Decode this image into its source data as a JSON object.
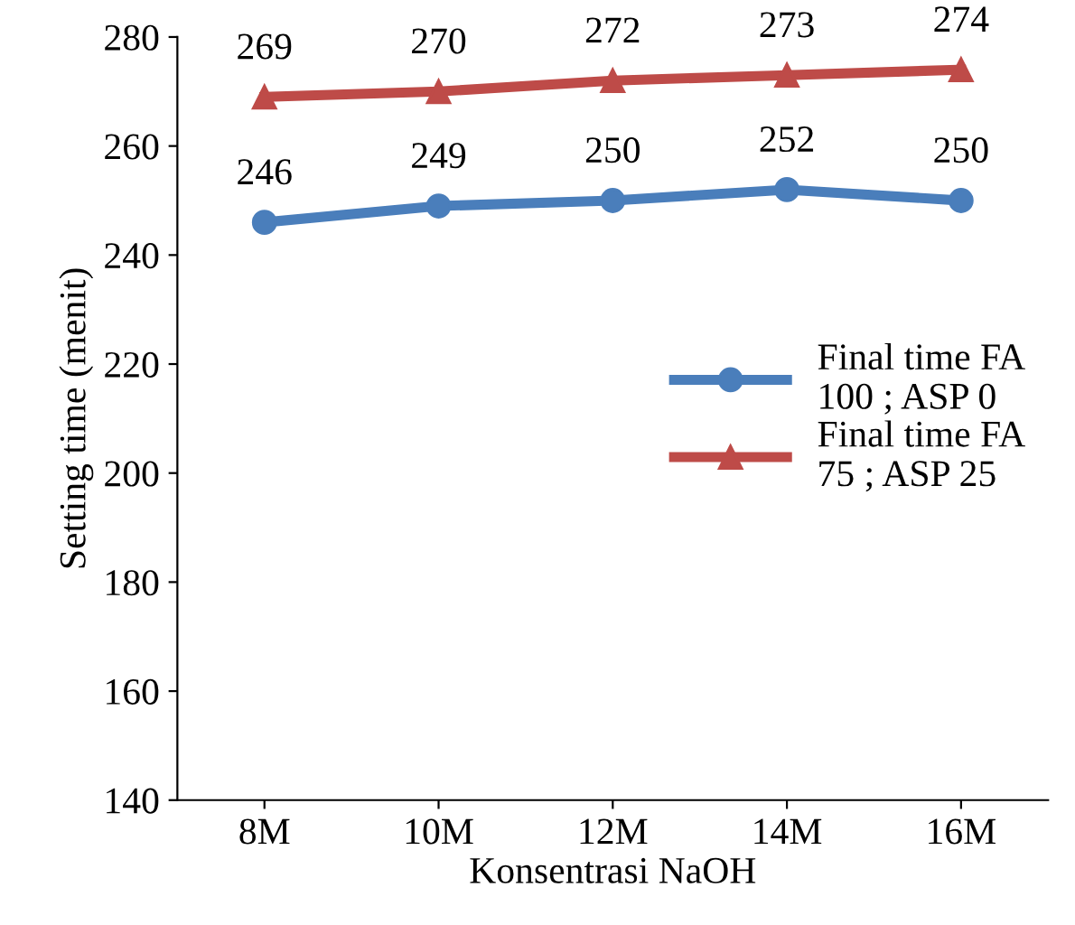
{
  "chart_data": {
    "type": "line",
    "xlabel": "Konsentrasi NaOH",
    "ylabel": "Setting time (menit)",
    "categories": [
      "8M",
      "10M",
      "12M",
      "14M",
      "16M"
    ],
    "series": [
      {
        "name": "Final time FA\n100 ; ASP 0",
        "color": "#4a7ebb",
        "marker": "circle",
        "values": [
          246,
          249,
          250,
          252,
          250
        ]
      },
      {
        "name": "Final time FA\n75 ; ASP 25",
        "color": "#be4b48",
        "marker": "triangle",
        "values": [
          269,
          270,
          272,
          273,
          274
        ]
      }
    ],
    "ylim": [
      140,
      280
    ],
    "yticks": [
      140,
      160,
      180,
      200,
      220,
      240,
      260,
      280
    ],
    "data_labels": true,
    "grid": false,
    "legend": "right"
  }
}
